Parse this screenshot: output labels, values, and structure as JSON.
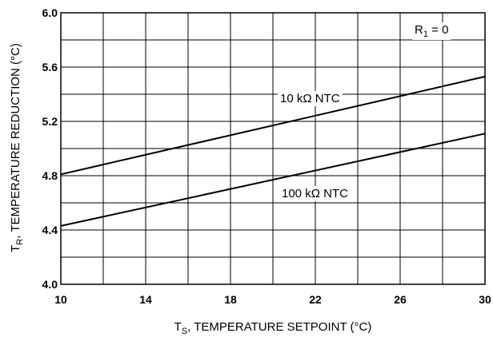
{
  "chart_data": {
    "type": "line",
    "xlabel_main": "T",
    "xlabel_sub": "S",
    "xlabel_rest": ", TEMPERATURE SETPOINT (°C)",
    "ylabel_main": "T",
    "ylabel_sub": "R",
    "ylabel_rest": ", TEMPERATURE REDUCTION (°C)",
    "xlim": [
      10,
      30
    ],
    "ylim": [
      4.0,
      6.0
    ],
    "x_ticks": [
      10,
      14,
      18,
      22,
      26,
      30
    ],
    "x_tick_labels": [
      "10",
      "14",
      "18",
      "22",
      "26",
      "30"
    ],
    "y_ticks": [
      4.0,
      4.4,
      4.8,
      5.2,
      5.6,
      6.0
    ],
    "y_tick_labels": [
      "4.0",
      "4.4",
      "4.8",
      "5.2",
      "5.6",
      "6.0"
    ],
    "grid": true,
    "annotation_main": "R",
    "annotation_sub": "1",
    "annotation_rest": " = 0",
    "series": [
      {
        "name": "10 kΩ NTC",
        "x": [
          10,
          30
        ],
        "y": [
          4.81,
          5.53
        ]
      },
      {
        "name": "100 kΩ NTC",
        "x": [
          10,
          30
        ],
        "y": [
          4.43,
          5.11
        ]
      }
    ]
  }
}
